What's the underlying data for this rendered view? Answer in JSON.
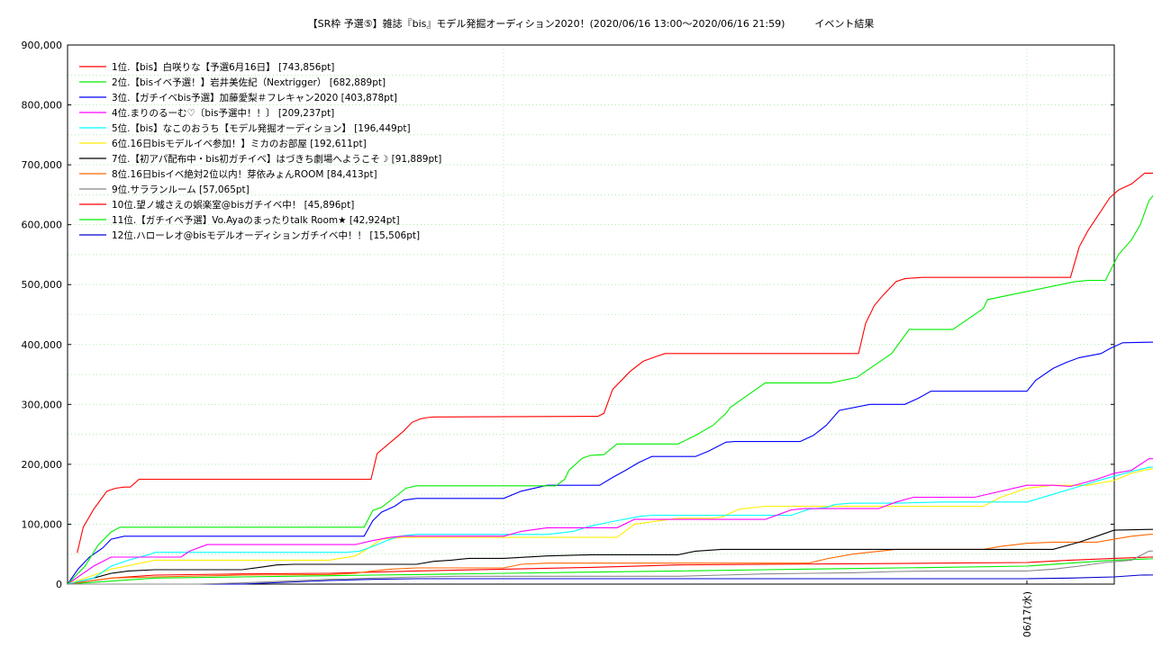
{
  "chart_data": {
    "type": "line",
    "title": "【SR枠 予選⑤】雑誌『bis』モデル発掘オーディション2020！(2020/06/16 13:00〜2020/06/16 21:59)　　　イベント結果",
    "xlabel": "",
    "ylabel": "",
    "x_ticks": [
      "06/17(水)"
    ],
    "y_ticks": [
      "0",
      "100,000",
      "200,000",
      "300,000",
      "400,000",
      "500,000",
      "600,000",
      "700,000",
      "800,000",
      "900,000"
    ],
    "ylim": [
      0,
      900000
    ],
    "xlim": [
      0,
      13
    ],
    "x_unit": "hours since 2020/06/16 13:00",
    "grid": true,
    "legend_position": "top-left",
    "series": [
      {
        "name": "1位.【bis】白咲りな【予選6月16日】 [743,856pt]",
        "color": "#ff0000",
        "x": [
          0.11,
          0.18,
          0.3,
          0.45,
          0.55,
          0.65,
          0.72,
          0.82,
          0.9,
          1.0,
          3.48,
          3.55,
          3.85,
          3.95,
          4.05,
          4.12,
          4.2,
          6.08,
          6.15,
          6.25,
          6.45,
          6.6,
          6.75,
          6.85,
          6.95,
          9.07,
          9.15,
          9.25,
          9.35,
          9.5,
          9.6,
          9.8,
          9.9,
          11.5,
          11.6,
          11.7,
          11.8,
          11.95,
          12.05,
          12.2,
          12.35,
          12.45,
          12.55,
          12.6,
          12.64,
          13.0
        ],
        "y": [
          52000,
          95000,
          125000,
          155000,
          160000,
          162000,
          162000,
          175000,
          175000,
          175000,
          175000,
          218000,
          255000,
          270000,
          276000,
          278000,
          279000,
          280000,
          285000,
          325000,
          355000,
          372000,
          380000,
          385000,
          385000,
          385000,
          435000,
          465000,
          482000,
          505000,
          510000,
          512000,
          512000,
          512000,
          563000,
          590000,
          612000,
          645000,
          658000,
          668000,
          686000,
          686000,
          742000,
          743856,
          743856,
          743856
        ]
      },
      {
        "name": "2位.【bisイベ予選！】岩井美佐紀（Nextrigger） [682,889pt]",
        "color": "#00ee00",
        "x": [
          0.0,
          0.2,
          0.35,
          0.5,
          0.6,
          1.0,
          3.4,
          3.5,
          3.6,
          3.75,
          3.88,
          4.0,
          5.6,
          5.7,
          5.75,
          5.9,
          6.0,
          6.15,
          6.3,
          6.5,
          7.0,
          7.2,
          7.4,
          7.55,
          7.6,
          8.0,
          8.1,
          8.35,
          8.6,
          8.75,
          9.05,
          9.15,
          9.3,
          9.45,
          9.65,
          10.15,
          10.3,
          10.5,
          10.55,
          11.55,
          11.7,
          11.9,
          12.05,
          12.2,
          12.3,
          12.4,
          12.64,
          13.0
        ],
        "y": [
          0,
          30000,
          65000,
          87000,
          95000,
          95000,
          95000,
          123000,
          128000,
          145000,
          160000,
          164000,
          164000,
          175000,
          190000,
          210000,
          215000,
          216000,
          234000,
          234000,
          234000,
          248000,
          265000,
          285000,
          295000,
          336000,
          336000,
          336000,
          336000,
          336000,
          345000,
          355000,
          370000,
          385000,
          425000,
          425000,
          440000,
          460000,
          475000,
          505000,
          507000,
          507000,
          550000,
          575000,
          600000,
          640000,
          682889,
          682889
        ]
      },
      {
        "name": "3位.【ガチイベbis予選】加藤愛梨＃フレキャン2020 [403,878pt]",
        "color": "#0000ff",
        "x": [
          0.0,
          0.12,
          0.25,
          0.4,
          0.5,
          0.65,
          3.4,
          3.5,
          3.6,
          3.75,
          3.85,
          4.0,
          5.0,
          5.2,
          5.5,
          6.0,
          6.1,
          6.25,
          6.4,
          6.55,
          6.7,
          7.2,
          7.35,
          7.55,
          7.65,
          8.0,
          8.2,
          8.4,
          8.55,
          8.7,
          8.85,
          9.2,
          9.4,
          9.6,
          9.75,
          9.9,
          11.0,
          11.1,
          11.3,
          11.45,
          11.6,
          11.85,
          11.95,
          12.1,
          12.4,
          12.64,
          13.0
        ],
        "y": [
          0,
          25000,
          45000,
          60000,
          75000,
          80000,
          80000,
          106000,
          120000,
          130000,
          140000,
          143000,
          143000,
          155000,
          165000,
          165000,
          165000,
          178000,
          190000,
          203000,
          213000,
          213000,
          222000,
          237000,
          238000,
          238000,
          238000,
          238000,
          248000,
          265000,
          290000,
          300000,
          300000,
          300000,
          310000,
          322000,
          322000,
          340000,
          360000,
          370000,
          378000,
          385000,
          393000,
          403000,
          403878,
          403878,
          403878
        ]
      },
      {
        "name": "4位.まりのるーむ♡〔bis予選中！！〕 [209,237pt]",
        "color": "#ff00ff",
        "x": [
          0.0,
          0.3,
          0.5,
          1.0,
          1.3,
          1.4,
          1.6,
          3.3,
          3.45,
          3.55,
          3.7,
          3.85,
          4.0,
          5.0,
          5.2,
          5.5,
          6.0,
          6.3,
          6.5,
          8.0,
          8.15,
          8.3,
          8.45,
          8.6,
          9.0,
          9.3,
          9.5,
          9.7,
          10.0,
          10.2,
          10.4,
          11.0,
          11.3,
          11.5,
          11.8,
          12.0,
          12.2,
          12.4,
          12.64,
          13.0
        ],
        "y": [
          0,
          30000,
          45000,
          45000,
          45000,
          55000,
          66000,
          66000,
          71000,
          74000,
          78000,
          80000,
          80000,
          80000,
          88000,
          94000,
          94000,
          94000,
          108000,
          108000,
          116000,
          124000,
          126000,
          126000,
          126000,
          126000,
          137000,
          145000,
          145000,
          145000,
          145000,
          165000,
          165000,
          163000,
          175000,
          185000,
          190000,
          209237,
          209237,
          209237
        ]
      },
      {
        "name": "5位.【bis】なこのおうち【モデル発掘オーディション】 [196,449pt]",
        "color": "#00ffff",
        "x": [
          0.0,
          0.3,
          0.5,
          0.7,
          0.95,
          1.0,
          3.2,
          3.35,
          3.5,
          3.65,
          3.8,
          4.0,
          5.3,
          5.5,
          5.8,
          6.0,
          6.3,
          6.45,
          6.55,
          6.7,
          7.0,
          7.2,
          8.3,
          8.5,
          8.7,
          8.8,
          9.0,
          9.3,
          9.5,
          10.0,
          10.5,
          10.7,
          11.0,
          11.3,
          11.6,
          11.8,
          12.0,
          12.2,
          12.4,
          12.64,
          13.0
        ],
        "y": [
          0,
          10000,
          30000,
          40000,
          50000,
          53000,
          53000,
          55000,
          63000,
          72000,
          80000,
          83000,
          83000,
          83000,
          88000,
          97000,
          106000,
          110000,
          113000,
          115000,
          115000,
          115000,
          115000,
          125000,
          128000,
          133000,
          135000,
          135000,
          135000,
          137000,
          137000,
          137000,
          137000,
          150000,
          163000,
          172000,
          180000,
          188000,
          195000,
          196449,
          196449
        ]
      },
      {
        "name": "6位.16日bisモデルイベ参加！】ミカのお部屋 [192,611pt]",
        "color": "#ffee00",
        "x": [
          0.0,
          0.5,
          1.0,
          2.5,
          3.0,
          3.3,
          3.45,
          3.6,
          3.85,
          4.0,
          5.5,
          6.0,
          6.1,
          6.3,
          6.5,
          7.0,
          7.4,
          7.5,
          7.7,
          8.0,
          8.5,
          9.0,
          9.5,
          10.0,
          10.5,
          10.7,
          11.0,
          11.3,
          11.5,
          11.7,
          12.0,
          12.2,
          12.4,
          12.64,
          13.0
        ],
        "y": [
          0,
          25000,
          40000,
          40000,
          40000,
          47000,
          60000,
          75000,
          78000,
          78000,
          78000,
          78000,
          78000,
          78000,
          100000,
          110000,
          110000,
          112000,
          125000,
          130000,
          130000,
          130000,
          130000,
          130000,
          130000,
          145000,
          160000,
          165000,
          165000,
          165000,
          173000,
          185000,
          192000,
          192611,
          192611
        ]
      },
      {
        "name": "7位.【初アパ配布中・bis初ガチイベ】はづきち劇場へようこそ☽ [91,889pt]",
        "color": "#000000",
        "x": [
          0.0,
          0.3,
          0.5,
          0.7,
          1.0,
          2.0,
          2.2,
          2.4,
          2.6,
          3.0,
          3.5,
          4.0,
          4.2,
          4.4,
          4.6,
          5.0,
          5.5,
          6.0,
          6.2,
          6.5,
          7.0,
          7.2,
          7.5,
          8.0,
          9.0,
          10.0,
          10.5,
          11.0,
          11.3,
          11.6,
          11.8,
          12.0,
          12.3,
          12.64,
          13.0
        ],
        "y": [
          0,
          10000,
          18000,
          22000,
          24000,
          24000,
          28000,
          32000,
          33000,
          33000,
          33000,
          33000,
          38000,
          40000,
          43000,
          43000,
          47000,
          49000,
          49000,
          49000,
          49000,
          55000,
          58000,
          58000,
          58000,
          58000,
          58000,
          58000,
          58000,
          70000,
          80000,
          90000,
          91000,
          91889,
          91889
        ]
      },
      {
        "name": "8位.16日bisイベ絶対2位以内！芽依みょんROOM [84,413pt]",
        "color": "#ff6600",
        "x": [
          0.0,
          0.5,
          1.0,
          2.0,
          3.0,
          3.3,
          3.5,
          3.7,
          4.0,
          4.5,
          5.0,
          5.2,
          5.5,
          6.0,
          6.5,
          7.0,
          7.5,
          8.0,
          8.5,
          8.7,
          9.0,
          9.5,
          10.0,
          10.5,
          10.7,
          11.0,
          11.3,
          11.6,
          11.8,
          12.0,
          12.2,
          12.4,
          12.64,
          13.0
        ],
        "y": [
          0,
          10000,
          12000,
          15000,
          16000,
          18000,
          22000,
          25000,
          27000,
          27000,
          27000,
          33000,
          35000,
          35000,
          35000,
          35000,
          35000,
          35000,
          35000,
          42000,
          50000,
          58000,
          58000,
          58000,
          63000,
          68000,
          70000,
          70000,
          70000,
          75000,
          80000,
          83000,
          84413,
          84413
        ]
      },
      {
        "name": "9位.サラランルーム [57,065pt]",
        "color": "#888888",
        "x": [
          0.0,
          1.0,
          1.5,
          2.0,
          2.5,
          3.0,
          3.5,
          4.0,
          4.5,
          5.0,
          5.5,
          6.0,
          6.5,
          7.0,
          7.5,
          8.0,
          8.5,
          9.0,
          9.5,
          10.0,
          10.5,
          11.0,
          11.3,
          11.6,
          11.9,
          12.2,
          12.4,
          12.64,
          13.0
        ],
        "y": [
          0,
          0,
          0,
          2000,
          5000,
          8000,
          10000,
          12000,
          13000,
          13000,
          13000,
          13000,
          13000,
          13000,
          15000,
          17000,
          18000,
          19000,
          21000,
          22000,
          22000,
          22000,
          25000,
          30000,
          36000,
          40000,
          55000,
          57065,
          57065
        ]
      },
      {
        "name": "10位.望ノ城さえの娯楽室@bisガチイベ中！ [45,896pt]",
        "color": "#ff0000",
        "x": [
          0.0,
          0.5,
          1.0,
          2.0,
          3.0,
          3.5,
          4.0,
          5.0,
          6.0,
          7.0,
          8.0,
          9.0,
          10.0,
          11.0,
          11.5,
          12.0,
          12.4,
          12.64,
          13.0
        ],
        "y": [
          0,
          10000,
          15000,
          17000,
          18000,
          20000,
          22000,
          25000,
          28000,
          32000,
          33000,
          34000,
          35000,
          36000,
          40000,
          43000,
          45000,
          45896,
          45896
        ]
      },
      {
        "name": "11位.【ガチイベ予選】Vo.Ayaのまったりtalk Room★ [42,924pt]",
        "color": "#00ee00",
        "x": [
          0.0,
          0.5,
          1.0,
          2.0,
          3.0,
          3.5,
          4.0,
          5.0,
          6.0,
          7.0,
          8.0,
          9.0,
          10.0,
          11.0,
          11.5,
          12.0,
          12.4,
          12.64,
          13.0
        ],
        "y": [
          0,
          5000,
          10000,
          12000,
          14000,
          15000,
          16000,
          18000,
          20000,
          22000,
          24000,
          26000,
          28000,
          30000,
          35000,
          40000,
          42000,
          42924,
          42924
        ]
      },
      {
        "name": "12位.ハローレオ@bisモデルオーディションガチイベ中！！ [15,506pt]",
        "color": "#0000cc",
        "x": [
          0.0,
          1.0,
          2.0,
          2.5,
          3.0,
          3.5,
          4.0,
          5.0,
          6.0,
          7.0,
          8.0,
          9.0,
          10.0,
          11.0,
          11.5,
          12.0,
          12.3,
          12.64,
          13.0
        ],
        "y": [
          0,
          0,
          0,
          3000,
          6000,
          8000,
          9000,
          9000,
          9000,
          9000,
          9000,
          9000,
          9000,
          9000,
          10000,
          12000,
          15000,
          15506,
          15506
        ]
      }
    ]
  }
}
